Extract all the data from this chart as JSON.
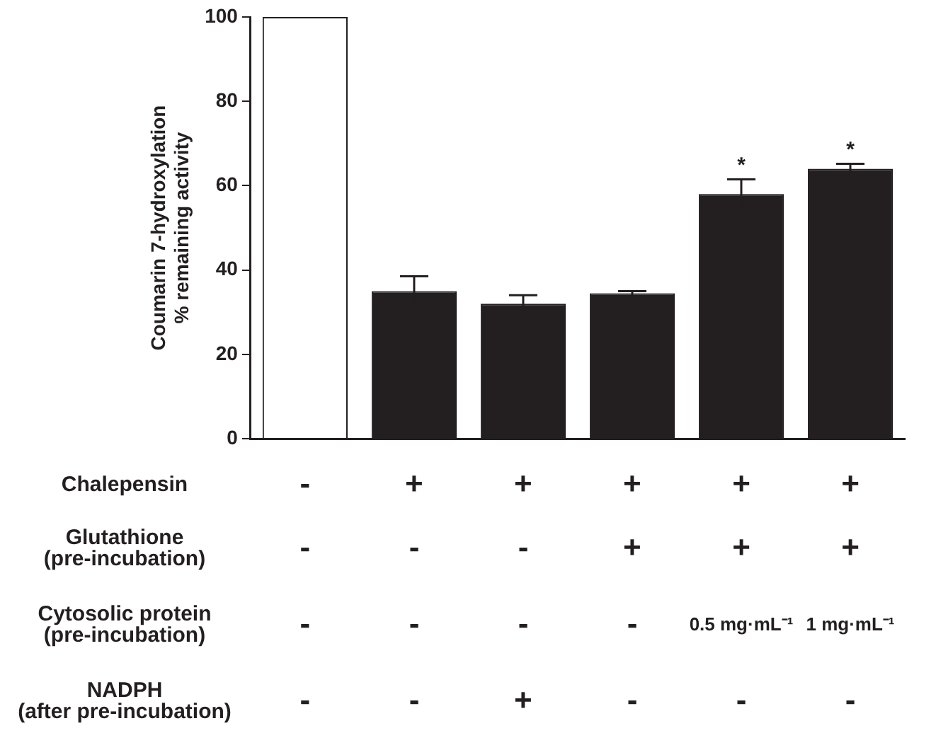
{
  "chart_data": {
    "type": "bar",
    "ylabel": "Coumarin 7-hydroxylation\n% remaining activity",
    "categories": [
      "-\n-\n-\n-",
      "+\n-\n-\n-",
      "+\n-\n-\n+",
      "+\n+\n-\n-",
      "+\n+\n0.5 mg·mL⁻¹\n-",
      "+\n+\n1 mg·mL⁻¹\n-"
    ],
    "values": [
      100,
      35,
      32,
      34.5,
      58,
      64
    ],
    "colors": [
      "#ffffff",
      "#231f20",
      "#231f20",
      "#231f20",
      "#231f20",
      "#231f20"
    ],
    "errors": [
      null,
      3.5,
      2,
      0.5,
      3.5,
      1.2
    ],
    "value_labels": [
      null,
      null,
      null,
      null,
      "*",
      "*"
    ],
    "annotations": [
      "Chalepensin",
      "Glutathione\n(pre-incubation)",
      "Cytosolic protein\n(pre-incubation)",
      "NADPH\n(after pre-incubation)"
    ],
    "ylim": [
      0,
      100
    ],
    "yticks": [
      0,
      20,
      40,
      60,
      80,
      100
    ],
    "grid": false,
    "legend": false
  }
}
